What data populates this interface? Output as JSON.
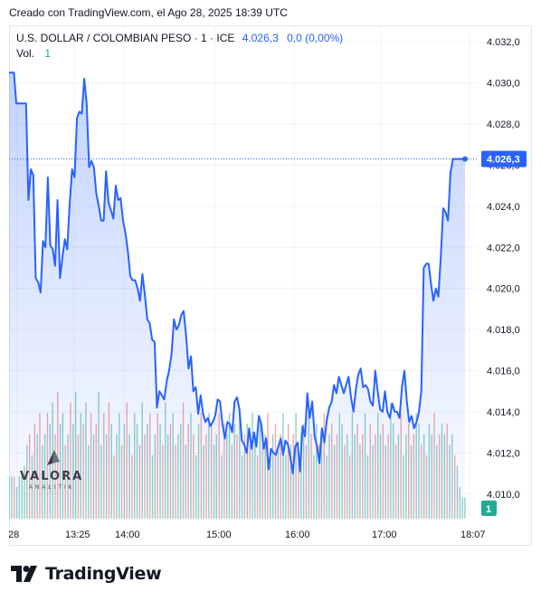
{
  "header": {
    "created_text": "Creado con TradingView.com, el Ago 28, 2025 18:39 UTC"
  },
  "legend": {
    "symbol": "U.S. DOLLAR / COLOMBIAN PESO · 1 · ICE",
    "last_value": "4.026,3",
    "change": "0,0 (0,00%)",
    "volume_label": "Vol.",
    "volume_value": "1"
  },
  "watermark": {
    "name": "VALORA",
    "sub": "ANALITIK"
  },
  "footer": {
    "brand": "TradingView"
  },
  "colors": {
    "line": "#2962ff",
    "area_top": "rgba(41,98,255,0.28)",
    "area_bottom": "rgba(41,98,255,0.02)",
    "vol_up": "#7cc7bd",
    "vol_down": "#f29a9a",
    "grid": "#f0f3fa",
    "axis_text": "#131722"
  },
  "chart_data": {
    "type": "line",
    "title": "U.S. DOLLAR / COLOMBIAN PESO · 1 · ICE",
    "x_ticks": [
      "28",
      "13:25",
      "14:00",
      "15:00",
      "16:00",
      "17:00",
      "18:07"
    ],
    "y_ticks": [
      "4.032,0",
      "4.030,0",
      "4.028,0",
      "4.026,0",
      "4.024,0",
      "4.022,0",
      "4.020,0",
      "4.018,0",
      "4.016,0",
      "4.014,0",
      "4.012,0",
      "4.010,0"
    ],
    "ylim": [
      4008.8,
      4032.8
    ],
    "last_price_label": "4.026,3",
    "last_price": 4026.3,
    "volume_badge": "1",
    "grid": true,
    "series": [
      {
        "values": [
          4030.5,
          4030.5,
          4030.5,
          4029.0,
          4029.0,
          4029.0,
          4029.0,
          4029.0,
          4024.3,
          4025.8,
          4025.5,
          4020.5,
          4020.3,
          4019.8,
          4022.3,
          4022.0,
          4025.4,
          4022.1,
          4021.9,
          4021.1,
          4024.3,
          4020.5,
          4021.5,
          4022.4,
          4021.9,
          4024.1,
          4025.8,
          4025.4,
          4028.3,
          4028.6,
          4028.5,
          4030.2,
          4029.0,
          4025.9,
          4026.2,
          4025.9,
          4024.6,
          4024.0,
          4023.3,
          4023.3,
          4025.7,
          4024.2,
          4023.8,
          4023.4,
          4025.0,
          4024.3,
          4024.4,
          4023.3,
          4022.7,
          4021.8,
          4020.6,
          4020.4,
          4020.4,
          4020.0,
          4019.4,
          4020.7,
          4019.7,
          4018.5,
          4018.3,
          4017.5,
          4017.4,
          4014.2,
          4015.0,
          4014.8,
          4014.6,
          4015.5,
          4016.0,
          4016.8,
          4018.5,
          4018.0,
          4018.2,
          4018.7,
          4018.9,
          4017.7,
          4016.1,
          4016.7,
          4015.0,
          4015.2,
          4013.9,
          4014.8,
          4013.9,
          4013.5,
          4013.7,
          4013.3,
          4013.5,
          4013.8,
          4014.6,
          4014.5,
          4013.4,
          4012.7,
          4013.5,
          4013.4,
          4013.0,
          4014.5,
          4014.7,
          4014.1,
          4012.6,
          4012.4,
          4012.0,
          4013.2,
          4012.2,
          4013.0,
          4012.3,
          4013.8,
          4013.4,
          4012.2,
          4012.7,
          4011.2,
          4012.2,
          4012.0,
          4011.9,
          4012.3,
          4012.7,
          4011.9,
          4012.6,
          4012.4,
          4011.8,
          4011.0,
          4012.3,
          4012.5,
          4011.1,
          4013.3,
          4012.8,
          4014.9,
          4013.7,
          4014.5,
          4012.8,
          4012.3,
          4011.5,
          4013.2,
          4012.5,
          4013.6,
          4014.2,
          4014.5,
          4015.3,
          4014.9,
          4015.7,
          4015.3,
          4014.9,
          4015.3,
          4015.7,
          4014.7,
          4014.0,
          4015.1,
          4015.8,
          4016.1,
          4015.2,
          4015.3,
          4015.1,
          4014.5,
          4014.3,
          4016.0,
          4015.0,
          4014.1,
          4014.0,
          4015.0,
          4014.0,
          4013.7,
          4014.4,
          4014.0,
          4014.0,
          4013.7,
          4015.2,
          4016.0,
          4014.5,
          4013.5,
          4013.8,
          4013.2,
          4013.5,
          4014.0,
          4015.0,
          4021.0,
          4021.2,
          4021.2,
          4020.2,
          4019.4,
          4020.0,
          4019.6,
          4021.5,
          4023.9,
          4023.7,
          4023.3,
          4025.6,
          4026.3,
          4026.3,
          4026.3,
          4026.3,
          4026.3,
          4026.3
        ]
      }
    ],
    "volume": [
      {
        "v": 0.4,
        "up": true
      },
      {
        "v": 0.4,
        "up": true
      },
      {
        "v": 0.4,
        "up": false
      },
      {
        "v": 0.3,
        "up": true
      },
      {
        "v": 0.4,
        "up": true
      },
      {
        "v": 0.4,
        "up": true
      },
      {
        "v": 0.5,
        "up": true
      },
      {
        "v": 0.7,
        "up": true
      },
      {
        "v": 0.8,
        "up": false
      },
      {
        "v": 0.6,
        "up": true
      },
      {
        "v": 0.9,
        "up": false
      },
      {
        "v": 0.8,
        "up": true
      },
      {
        "v": 1.0,
        "up": false
      },
      {
        "v": 0.7,
        "up": true
      },
      {
        "v": 0.8,
        "up": true
      },
      {
        "v": 1.0,
        "up": false
      },
      {
        "v": 0.9,
        "up": true
      },
      {
        "v": 1.1,
        "up": true
      },
      {
        "v": 0.8,
        "up": false
      },
      {
        "v": 1.2,
        "up": false
      },
      {
        "v": 0.9,
        "up": true
      },
      {
        "v": 1.0,
        "up": true
      },
      {
        "v": 0.7,
        "up": false
      },
      {
        "v": 0.8,
        "up": true
      },
      {
        "v": 1.1,
        "up": false
      },
      {
        "v": 0.9,
        "up": true
      },
      {
        "v": 1.2,
        "up": true
      },
      {
        "v": 0.8,
        "up": false
      },
      {
        "v": 1.0,
        "up": true
      },
      {
        "v": 0.9,
        "up": false
      },
      {
        "v": 1.1,
        "up": true
      },
      {
        "v": 0.7,
        "up": true
      },
      {
        "v": 1.0,
        "up": false
      },
      {
        "v": 0.8,
        "up": true
      },
      {
        "v": 0.9,
        "up": false
      },
      {
        "v": 1.2,
        "up": true
      },
      {
        "v": 0.7,
        "up": true
      },
      {
        "v": 1.0,
        "up": false
      },
      {
        "v": 0.8,
        "up": true
      },
      {
        "v": 1.1,
        "up": false
      },
      {
        "v": 0.9,
        "up": true
      },
      {
        "v": 0.6,
        "up": false
      },
      {
        "v": 0.8,
        "up": true
      },
      {
        "v": 1.0,
        "up": true
      },
      {
        "v": 0.7,
        "up": false
      },
      {
        "v": 0.9,
        "up": true
      },
      {
        "v": 1.1,
        "up": false
      },
      {
        "v": 0.8,
        "up": true
      },
      {
        "v": 0.6,
        "up": false
      },
      {
        "v": 1.0,
        "up": true
      },
      {
        "v": 0.9,
        "up": true
      },
      {
        "v": 0.7,
        "up": false
      },
      {
        "v": 1.1,
        "up": true
      },
      {
        "v": 0.8,
        "up": false
      },
      {
        "v": 0.9,
        "up": true
      },
      {
        "v": 1.0,
        "up": false
      },
      {
        "v": 0.6,
        "up": true
      },
      {
        "v": 0.8,
        "up": true
      },
      {
        "v": 1.0,
        "up": false
      },
      {
        "v": 0.9,
        "up": true
      },
      {
        "v": 0.7,
        "up": false
      },
      {
        "v": 1.1,
        "up": true
      },
      {
        "v": 0.8,
        "up": true
      },
      {
        "v": 0.9,
        "up": false
      },
      {
        "v": 1.0,
        "up": true
      },
      {
        "v": 0.7,
        "up": false
      },
      {
        "v": 0.8,
        "up": true
      },
      {
        "v": 0.9,
        "up": true
      },
      {
        "v": 1.1,
        "up": false
      },
      {
        "v": 0.7,
        "up": true
      },
      {
        "v": 0.9,
        "up": false
      },
      {
        "v": 1.0,
        "up": true
      },
      {
        "v": 0.8,
        "up": false
      },
      {
        "v": 0.6,
        "up": true
      },
      {
        "v": 0.9,
        "up": true
      },
      {
        "v": 1.0,
        "up": false
      },
      {
        "v": 0.7,
        "up": true
      },
      {
        "v": 0.8,
        "up": false
      },
      {
        "v": 1.0,
        "up": true
      },
      {
        "v": 0.9,
        "up": false
      },
      {
        "v": 0.7,
        "up": true
      },
      {
        "v": 0.8,
        "up": true
      },
      {
        "v": 1.0,
        "up": false
      },
      {
        "v": 0.6,
        "up": true
      },
      {
        "v": 0.9,
        "up": false
      },
      {
        "v": 0.8,
        "up": true
      },
      {
        "v": 1.0,
        "up": true
      },
      {
        "v": 0.7,
        "up": false
      },
      {
        "v": 0.9,
        "up": true
      },
      {
        "v": 0.8,
        "up": false
      },
      {
        "v": 1.0,
        "up": true
      },
      {
        "v": 0.6,
        "up": true
      },
      {
        "v": 0.8,
        "up": false
      },
      {
        "v": 0.9,
        "up": true
      },
      {
        "v": 0.7,
        "up": false
      },
      {
        "v": 1.0,
        "up": true
      },
      {
        "v": 0.8,
        "up": true
      },
      {
        "v": 0.6,
        "up": false
      },
      {
        "v": 0.9,
        "up": true
      },
      {
        "v": 0.7,
        "up": false
      },
      {
        "v": 0.8,
        "up": true
      },
      {
        "v": 1.0,
        "up": false
      },
      {
        "v": 0.6,
        "up": true
      },
      {
        "v": 0.8,
        "up": true
      },
      {
        "v": 0.9,
        "up": false
      },
      {
        "v": 0.7,
        "up": true
      },
      {
        "v": 0.8,
        "up": false
      },
      {
        "v": 1.0,
        "up": true
      },
      {
        "v": 0.6,
        "up": true
      },
      {
        "v": 0.9,
        "up": false
      },
      {
        "v": 0.7,
        "up": true
      },
      {
        "v": 0.8,
        "up": false
      },
      {
        "v": 1.0,
        "up": true
      },
      {
        "v": 0.6,
        "up": false
      },
      {
        "v": 0.8,
        "up": true
      },
      {
        "v": 0.9,
        "up": true
      },
      {
        "v": 0.7,
        "up": false
      },
      {
        "v": 1.0,
        "up": true
      },
      {
        "v": 0.8,
        "up": false
      },
      {
        "v": 0.6,
        "up": true
      },
      {
        "v": 0.9,
        "up": true
      },
      {
        "v": 0.7,
        "up": false
      },
      {
        "v": 0.8,
        "up": true
      },
      {
        "v": 1.0,
        "up": false
      },
      {
        "v": 0.6,
        "up": true
      },
      {
        "v": 0.8,
        "up": true
      },
      {
        "v": 0.9,
        "up": false
      },
      {
        "v": 0.7,
        "up": true
      },
      {
        "v": 0.8,
        "up": false
      },
      {
        "v": 1.0,
        "up": true
      },
      {
        "v": 0.9,
        "up": true
      },
      {
        "v": 0.7,
        "up": false
      },
      {
        "v": 0.8,
        "up": true
      },
      {
        "v": 0.6,
        "up": false
      },
      {
        "v": 1.0,
        "up": true
      },
      {
        "v": 0.8,
        "up": true
      },
      {
        "v": 0.9,
        "up": false
      },
      {
        "v": 0.7,
        "up": true
      },
      {
        "v": 0.8,
        "up": false
      },
      {
        "v": 1.0,
        "up": true
      },
      {
        "v": 0.6,
        "up": true
      },
      {
        "v": 0.9,
        "up": false
      },
      {
        "v": 0.7,
        "up": true
      },
      {
        "v": 0.8,
        "up": false
      },
      {
        "v": 1.0,
        "up": true
      },
      {
        "v": 0.8,
        "up": true
      },
      {
        "v": 0.9,
        "up": false
      },
      {
        "v": 0.7,
        "up": true
      },
      {
        "v": 0.8,
        "up": false
      },
      {
        "v": 1.1,
        "up": true
      },
      {
        "v": 0.9,
        "up": true
      },
      {
        "v": 0.7,
        "up": false
      },
      {
        "v": 0.8,
        "up": true
      },
      {
        "v": 1.0,
        "up": false
      },
      {
        "v": 0.6,
        "up": true
      },
      {
        "v": 0.8,
        "up": true
      },
      {
        "v": 0.9,
        "up": false
      },
      {
        "v": 0.7,
        "up": true
      },
      {
        "v": 0.8,
        "up": false
      },
      {
        "v": 1.0,
        "up": true
      },
      {
        "v": 0.9,
        "up": true
      },
      {
        "v": 0.7,
        "up": false
      },
      {
        "v": 0.8,
        "up": true
      },
      {
        "v": 0.6,
        "up": false
      },
      {
        "v": 0.9,
        "up": true
      },
      {
        "v": 0.8,
        "up": true
      },
      {
        "v": 1.0,
        "up": false
      },
      {
        "v": 0.7,
        "up": true
      },
      {
        "v": 0.8,
        "up": false
      },
      {
        "v": 0.9,
        "up": true
      },
      {
        "v": 0.8,
        "up": true
      },
      {
        "v": 0.9,
        "up": false
      },
      {
        "v": 0.7,
        "up": true
      },
      {
        "v": 0.8,
        "up": true
      },
      {
        "v": 0.6,
        "up": false
      },
      {
        "v": 0.5,
        "up": true
      },
      {
        "v": 0.3,
        "up": true
      },
      {
        "v": 0.2,
        "up": true
      },
      {
        "v": 0.2,
        "up": true
      }
    ]
  }
}
